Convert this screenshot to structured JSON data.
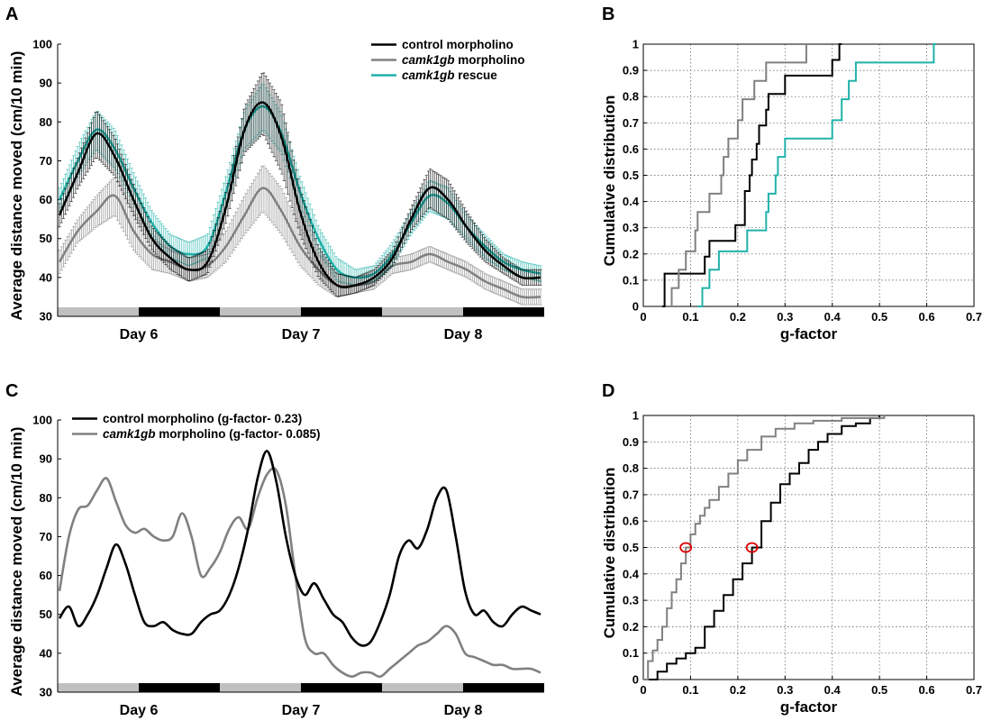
{
  "chart_data": [
    {
      "panel": "A",
      "type": "line",
      "ylabel": "Average distance moved (cm/10 min)",
      "ylim": [
        30,
        100
      ],
      "yticks": [
        "30",
        "40",
        "50",
        "60",
        "70",
        "80",
        "90",
        "100"
      ],
      "day_labels": [
        "Day 6",
        "Day 7",
        "Day 8"
      ],
      "light_dark_bar": [
        "light",
        "dark",
        "light",
        "dark",
        "light",
        "dark"
      ],
      "error_bars": true,
      "legend": "top-right",
      "series": [
        {
          "name": "control morpholino",
          "name_parts": [
            {
              "t": "control morpholino",
              "i": false
            }
          ],
          "color": "#000000",
          "err": [
            3,
            4,
            6,
            5,
            4,
            3,
            3,
            3,
            3,
            4,
            6,
            8,
            9,
            6,
            4,
            3,
            2,
            2,
            2,
            3,
            5,
            5,
            4,
            3,
            2,
            2,
            2
          ],
          "values": [
            56,
            67,
            77,
            71,
            60,
            50,
            45,
            42,
            44,
            58,
            78,
            85,
            76,
            57,
            44,
            38,
            38,
            40,
            45,
            55,
            63,
            60,
            53,
            47,
            43,
            40,
            40
          ]
        },
        {
          "name": "camk1gb morpholino",
          "name_parts": [
            {
              "t": "camk1gb",
              "i": true
            },
            {
              "t": " morpholino",
              "i": false
            }
          ],
          "color": "#808080",
          "err": [
            3,
            3,
            4,
            5,
            5,
            4,
            3,
            3,
            3,
            4,
            5,
            6,
            6,
            5,
            4,
            3,
            2,
            2,
            2,
            2,
            2,
            2,
            2,
            2,
            2,
            2,
            2
          ],
          "values": [
            44,
            52,
            57,
            61,
            52,
            46,
            44,
            42,
            43,
            48,
            56,
            63,
            57,
            48,
            42,
            38,
            38,
            39,
            43,
            44,
            46,
            44,
            42,
            39,
            37,
            35,
            35
          ]
        },
        {
          "name": "camk1gb rescue",
          "name_parts": [
            {
              "t": "camk1gb",
              "i": true
            },
            {
              "t": " rescue",
              "i": false
            }
          ],
          "color": "#20b2aa",
          "err": [
            3,
            4,
            5,
            5,
            4,
            3,
            3,
            3,
            3,
            4,
            5,
            6,
            5,
            4,
            3,
            3,
            2,
            2,
            3,
            3,
            4,
            4,
            3,
            3,
            2,
            2,
            2
          ],
          "values": [
            60,
            70,
            78,
            73,
            63,
            54,
            48,
            46,
            48,
            62,
            78,
            84,
            77,
            62,
            50,
            42,
            40,
            41,
            46,
            54,
            61,
            59,
            53,
            48,
            44,
            42,
            41
          ]
        }
      ]
    },
    {
      "panel": "B",
      "type": "line",
      "xlabel": "g-factor",
      "ylabel": "Cumulative distribution",
      "xlim": [
        0,
        0.7
      ],
      "ylim": [
        0,
        1
      ],
      "xticks": [
        "0",
        "0.1",
        "0.2",
        "0.3",
        "0.4",
        "0.5",
        "0.6",
        "0.7"
      ],
      "yticks": [
        "0",
        "0.1",
        "0.2",
        "0.3",
        "0.4",
        "0.5",
        "0.6",
        "0.7",
        "0.8",
        "0.9",
        "1"
      ],
      "grid": true,
      "series": [
        {
          "name": "control morpholino",
          "color": "#000000",
          "x": [
            0.04,
            0.045,
            0.085,
            0.13,
            0.14,
            0.155,
            0.195,
            0.215,
            0.225,
            0.23,
            0.24,
            0.245,
            0.26,
            0.265,
            0.275,
            0.3,
            0.335,
            0.36,
            0.4,
            0.41,
            0.415,
            0.42
          ],
          "y": [
            0,
            0.125,
            0.125,
            0.19,
            0.25,
            0.25,
            0.31,
            0.44,
            0.5,
            0.56,
            0.62,
            0.69,
            0.75,
            0.81,
            0.81,
            0.88,
            0.88,
            0.88,
            0.94,
            0.94,
            1.0,
            1.0
          ]
        },
        {
          "name": "camk1gb morpholino",
          "color": "#808080",
          "x": [
            0.05,
            0.06,
            0.075,
            0.09,
            0.11,
            0.115,
            0.14,
            0.165,
            0.17,
            0.18,
            0.2,
            0.21,
            0.22,
            0.235,
            0.26,
            0.275,
            0.285,
            0.345,
            0.35
          ],
          "y": [
            0,
            0.07,
            0.14,
            0.21,
            0.29,
            0.36,
            0.43,
            0.5,
            0.57,
            0.64,
            0.71,
            0.79,
            0.79,
            0.86,
            0.93,
            0.93,
            0.93,
            1.0,
            1.0
          ]
        },
        {
          "name": "camk1gb rescue",
          "color": "#20b2aa",
          "x": [
            0.115,
            0.125,
            0.14,
            0.16,
            0.22,
            0.26,
            0.265,
            0.28,
            0.285,
            0.3,
            0.33,
            0.4,
            0.42,
            0.435,
            0.45,
            0.6,
            0.615,
            0.62
          ],
          "y": [
            0,
            0.07,
            0.14,
            0.21,
            0.29,
            0.36,
            0.43,
            0.5,
            0.57,
            0.64,
            0.64,
            0.71,
            0.79,
            0.86,
            0.93,
            0.93,
            1.0,
            1.0
          ]
        }
      ]
    },
    {
      "panel": "C",
      "type": "line",
      "ylabel": "Average distance moved (cm/10 min)",
      "ylim": [
        30,
        100
      ],
      "yticks": [
        "30",
        "40",
        "50",
        "60",
        "70",
        "80",
        "90",
        "100"
      ],
      "day_labels": [
        "Day 6",
        "Day 7",
        "Day 8"
      ],
      "light_dark_bar": [
        "light",
        "dark",
        "light",
        "dark",
        "light",
        "dark"
      ],
      "legend": "top-left",
      "series": [
        {
          "name": "control morpholino (g-factor- 0.23)",
          "name_parts": [
            {
              "t": "control morpholino (g-factor- 0.23)",
              "i": false
            }
          ],
          "color": "#000000",
          "values": [
            49,
            52,
            47,
            50,
            55,
            62,
            68,
            63,
            55,
            48,
            47,
            48,
            46,
            45,
            45,
            48,
            50,
            51,
            55,
            62,
            72,
            85,
            92,
            84,
            70,
            60,
            55,
            58,
            54,
            50,
            48,
            44,
            42,
            43,
            48,
            55,
            65,
            69,
            67,
            72,
            80,
            82,
            70,
            56,
            50,
            51,
            48,
            47,
            50,
            52,
            51,
            50
          ]
        },
        {
          "name": "camk1gb morpholino (g-factor- 0.085)",
          "name_parts": [
            {
              "t": "camk1gb",
              "i": true
            },
            {
              "t": " morpholino (g-factor- 0.085)",
              "i": false
            }
          ],
          "color": "#808080",
          "values": [
            56,
            70,
            77,
            78,
            82,
            85,
            79,
            73,
            71,
            72,
            70,
            69,
            70,
            76,
            70,
            60,
            62,
            66,
            72,
            75,
            72,
            80,
            86,
            87,
            78,
            60,
            44,
            40,
            40,
            37,
            35,
            34,
            35,
            35,
            34,
            36,
            38,
            40,
            42,
            43,
            45,
            47,
            45,
            40,
            39,
            38,
            37,
            37,
            36,
            36,
            36,
            35
          ]
        }
      ]
    },
    {
      "panel": "D",
      "type": "line",
      "xlabel": "g-factor",
      "ylabel": "Cumulative distribution",
      "xlim": [
        0,
        0.7
      ],
      "ylim": [
        0,
        1
      ],
      "xticks": [
        "0",
        "0.1",
        "0.2",
        "0.3",
        "0.4",
        "0.5",
        "0.6",
        "0.7"
      ],
      "yticks": [
        "0",
        "0.1",
        "0.2",
        "0.3",
        "0.4",
        "0.5",
        "0.6",
        "0.7",
        "0.8",
        "0.9",
        "1"
      ],
      "grid": true,
      "markers": [
        {
          "x": 0.09,
          "y": 0.5,
          "color": "#e00000"
        },
        {
          "x": 0.23,
          "y": 0.5,
          "color": "#e00000"
        }
      ],
      "series": [
        {
          "name": "control morpholino",
          "color": "#000000",
          "x": [
            0,
            0.03,
            0.05,
            0.07,
            0.09,
            0.11,
            0.13,
            0.15,
            0.17,
            0.19,
            0.21,
            0.23,
            0.25,
            0.27,
            0.29,
            0.31,
            0.33,
            0.35,
            0.37,
            0.39,
            0.42,
            0.45,
            0.48,
            0.5
          ],
          "y": [
            0,
            0.03,
            0.06,
            0.08,
            0.1,
            0.12,
            0.2,
            0.26,
            0.32,
            0.38,
            0.44,
            0.5,
            0.6,
            0.67,
            0.74,
            0.78,
            0.82,
            0.87,
            0.9,
            0.93,
            0.96,
            0.97,
            0.99,
            1.0
          ]
        },
        {
          "name": "camk1gb morpholino",
          "color": "#808080",
          "x": [
            0,
            0.01,
            0.02,
            0.03,
            0.04,
            0.05,
            0.06,
            0.07,
            0.08,
            0.09,
            0.1,
            0.11,
            0.12,
            0.13,
            0.14,
            0.16,
            0.18,
            0.2,
            0.22,
            0.25,
            0.28,
            0.32,
            0.36,
            0.42,
            0.51
          ],
          "y": [
            0,
            0.07,
            0.11,
            0.15,
            0.2,
            0.27,
            0.33,
            0.38,
            0.44,
            0.5,
            0.55,
            0.59,
            0.62,
            0.65,
            0.68,
            0.73,
            0.78,
            0.83,
            0.87,
            0.92,
            0.95,
            0.97,
            0.98,
            0.99,
            1.0
          ]
        }
      ]
    }
  ],
  "panels": {
    "A": {
      "label": "A"
    },
    "B": {
      "label": "B"
    },
    "C": {
      "label": "C"
    },
    "D": {
      "label": "D"
    }
  }
}
